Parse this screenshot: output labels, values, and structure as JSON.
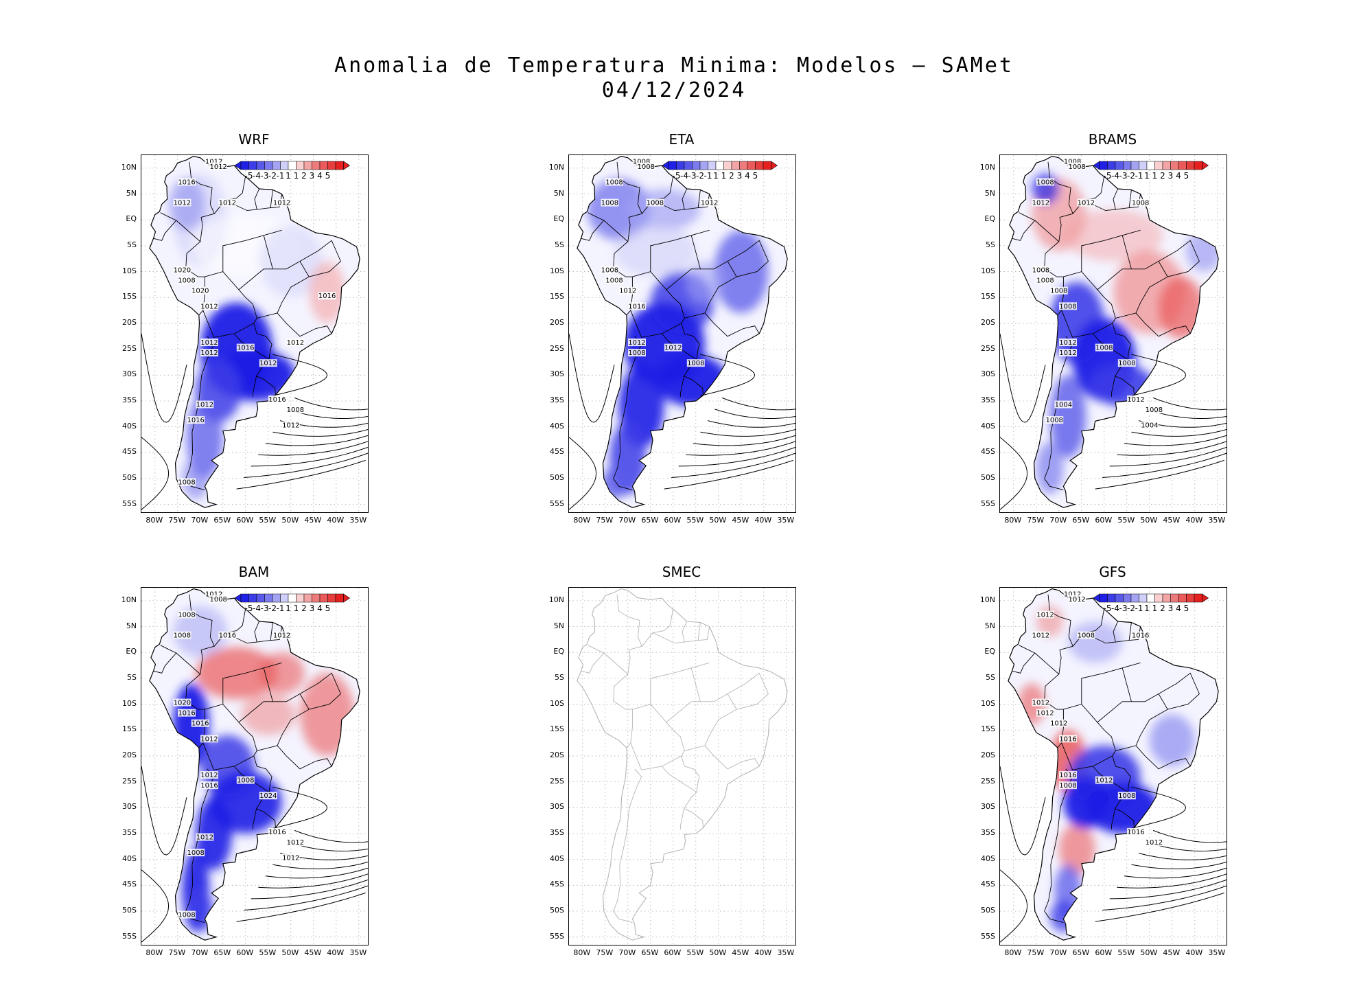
{
  "title_line1": "Anomalia de Temperatura Minima: Modelos — SAMet",
  "title_line2": "04/12/2024",
  "lat_ticks": [
    "10N",
    "5N",
    "EQ",
    "5S",
    "10S",
    "15S",
    "20S",
    "25S",
    "30S",
    "35S",
    "40S",
    "45S",
    "50S",
    "55S"
  ],
  "lon_ticks": [
    "80W",
    "75W",
    "70W",
    "65W",
    "60W",
    "55W",
    "50W",
    "45W",
    "40W",
    "35W"
  ],
  "colorbar": {
    "labels": [
      "-5",
      "-4",
      "-3",
      "-2",
      "-1",
      "1",
      "1",
      "2",
      "3",
      "4",
      "5"
    ],
    "colors": [
      "#1f1fe6",
      "#3d3de8",
      "#5a5aea",
      "#7b7bee",
      "#a4a4f3",
      "#cfcff9",
      "#ffffff",
      "#f9cfcf",
      "#f3a4a4",
      "#ee7b7b",
      "#ea5a5a",
      "#e63d3d",
      "#e61f1f"
    ]
  },
  "panels": [
    {
      "name": "WRF",
      "data": true,
      "style": "cold_south",
      "isobars": [
        "1012",
        "1012",
        "1016",
        "1012",
        "1012",
        "1012",
        "1020",
        "1008",
        "1020",
        "1012",
        "1012",
        "1012",
        "1016",
        "1012",
        "1016",
        "1008",
        "1012",
        "1016",
        "1012",
        "1008",
        "1016",
        "1012"
      ]
    },
    {
      "name": "ETA",
      "data": true,
      "style": "cold_all",
      "isobars": [
        "1008",
        "1008",
        "1008",
        "1008",
        "1008",
        "1012",
        "1008",
        "1008",
        "1012",
        "1016",
        "1012",
        "1008",
        "1012",
        "1008"
      ]
    },
    {
      "name": "BRAMS",
      "data": true,
      "style": "mixed",
      "isobars": [
        "1008",
        "1008",
        "1008",
        "1012",
        "1012",
        "1008",
        "1008",
        "1008",
        "1008",
        "1008",
        "1012",
        "1012",
        "1008",
        "1008",
        "1012",
        "1008",
        "1004",
        "1008",
        "1004"
      ]
    },
    {
      "name": "BAM",
      "data": true,
      "style": "warm_north",
      "isobars": [
        "1012",
        "1008",
        "1008",
        "1008",
        "1016",
        "1012",
        "1020",
        "1016",
        "1016",
        "1012",
        "1012",
        "1016",
        "1008",
        "1024",
        "1016",
        "1012",
        "1012",
        "1008",
        "1012",
        "1008"
      ]
    },
    {
      "name": "SMEC",
      "data": false,
      "style": "empty",
      "isobars": []
    },
    {
      "name": "GFS",
      "data": true,
      "style": "gfs",
      "isobars": [
        "1012",
        "1012",
        "1012",
        "1012",
        "1008",
        "1016",
        "1012",
        "1012",
        "1012",
        "1016",
        "1016",
        "1008",
        "1012",
        "1008",
        "1016",
        "1012"
      ]
    }
  ]
}
